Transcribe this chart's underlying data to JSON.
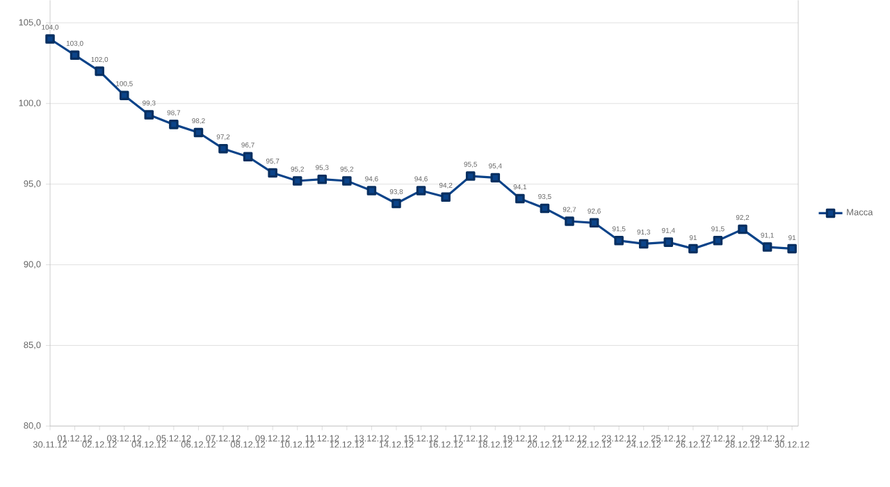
{
  "chart_data": {
    "type": "line",
    "categories": [
      "30.11.12",
      "01.12.12",
      "02.12.12",
      "03.12.12",
      "04.12.12",
      "05.12.12",
      "06.12.12",
      "07.12.12",
      "08.12.12",
      "09.12.12",
      "10.12.12",
      "11.12.12",
      "12.12.12",
      "13.12.12",
      "14.12.12",
      "15.12.12",
      "16.12.12",
      "17.12.12",
      "18.12.12",
      "19.12.12",
      "20.12.12",
      "21.12.12",
      "22.12.12",
      "23.12.12",
      "24.12.12",
      "25.12.12",
      "26.12.12",
      "27.12.12",
      "28.12.12",
      "29.12.12",
      "30.12.12"
    ],
    "series": [
      {
        "name": "Масса",
        "color": "#0b4389",
        "values": [
          104.0,
          103.0,
          102.0,
          100.5,
          99.3,
          98.7,
          98.2,
          97.2,
          96.7,
          95.7,
          95.2,
          95.3,
          95.2,
          94.6,
          93.8,
          94.6,
          94.2,
          95.5,
          95.4,
          94.1,
          93.5,
          92.7,
          92.6,
          91.5,
          91.3,
          91.4,
          91,
          91.5,
          92.2,
          91.1,
          91
        ],
        "value_labels": [
          "104,0",
          "103,0",
          "102,0",
          "100,5",
          "99,3",
          "98,7",
          "98,2",
          "97,2",
          "96,7",
          "95,7",
          "95,2",
          "95,3",
          "95,2",
          "94,6",
          "93,8",
          "94,6",
          "94,2",
          "95,5",
          "95,4",
          "94,1",
          "93,5",
          "92,7",
          "92,6",
          "91,5",
          "91,3",
          "91,4",
          "91",
          "91,5",
          "92,2",
          "91,1",
          "91"
        ]
      }
    ],
    "ylim": [
      80,
      106.4
    ],
    "yticks": [
      {
        "value": 80,
        "label": "80,0"
      },
      {
        "value": 85,
        "label": "85,0"
      },
      {
        "value": 90,
        "label": "90,0"
      },
      {
        "value": 95,
        "label": "95,0"
      },
      {
        "value": 100,
        "label": "100,0"
      },
      {
        "value": 105,
        "label": "105,0"
      }
    ],
    "grid": "y",
    "legend": "right",
    "marker": "square",
    "line_style": "solid"
  }
}
